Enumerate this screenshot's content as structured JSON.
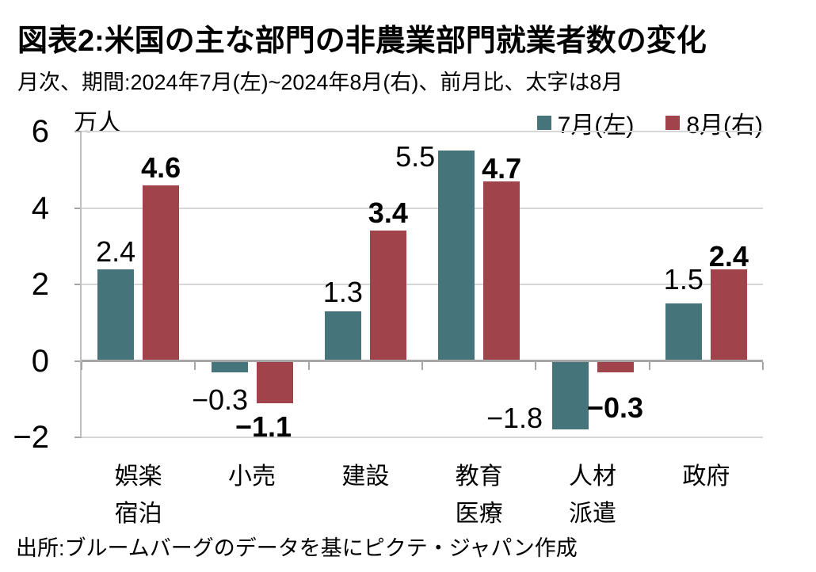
{
  "chart_data": {
    "type": "bar",
    "title": "図表2:米国の主な部門の非農業部門就業者数の変化",
    "subtitle": "月次、期間:2024年7月(左)~2024年8月(右)、前月比、太字は8月",
    "unit_label": "万人",
    "source": "出所:ブルームバーグのデータを基にピクテ・ジャパン作成",
    "categories": [
      [
        "娯楽",
        "宿泊"
      ],
      [
        "小売"
      ],
      [
        "建設"
      ],
      [
        "教育",
        "医療"
      ],
      [
        "人材",
        "派遣"
      ],
      [
        "政府"
      ]
    ],
    "series": [
      {
        "name": "7月(左)",
        "color": "#45747b",
        "bold_value_labels": false,
        "values": [
          2.4,
          -0.3,
          1.3,
          5.5,
          -1.8,
          1.5
        ]
      },
      {
        "name": "8月(右)",
        "color": "#a0434a",
        "bold_value_labels": true,
        "values": [
          4.6,
          -1.1,
          3.4,
          4.7,
          -0.3,
          2.4
        ]
      }
    ],
    "ylim": [
      -2,
      6
    ],
    "yticks": [
      6,
      4,
      2,
      0,
      -2
    ],
    "grid": true,
    "legend_position": "top-right",
    "colors": {
      "grid": "#d6d6d6",
      "zero_line": "#a6a6a6",
      "axis": "#bfbfbf",
      "text": "#000000"
    }
  }
}
